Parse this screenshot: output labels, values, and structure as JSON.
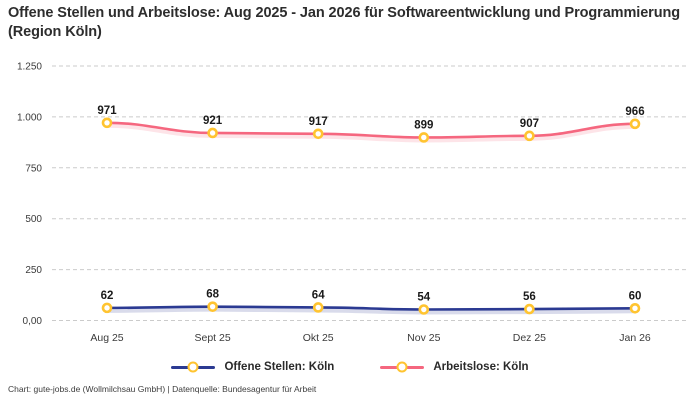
{
  "header": {
    "title": "Offene Stellen und Arbeitslose: Aug 2025 - Jan 2026 für Softwareentwicklung und Programmierung (Region Köln)"
  },
  "chart_data": {
    "type": "line",
    "title": "Offene Stellen und Arbeitslose: Aug 2025 - Jan 2026 für Softwareentwicklung und Programmierung (Region Köln)",
    "categories": [
      "Aug 25",
      "Sept 25",
      "Okt 25",
      "Nov 25",
      "Dez 25",
      "Jan 26"
    ],
    "series": [
      {
        "name": "Offene Stellen: Köln",
        "values": [
          62,
          68,
          64,
          54,
          56,
          60
        ],
        "color": "#2b3a92"
      },
      {
        "name": "Arbeitslose: Köln",
        "values": [
          971,
          921,
          917,
          899,
          907,
          966
        ],
        "color": "#f5677f"
      }
    ],
    "marker_color": "#ffc430",
    "marker_fill": "#ffffff",
    "data_labels": true,
    "y_ticks": [
      0,
      250,
      500,
      750,
      1000,
      1250
    ],
    "y_tick_labels": [
      "0,00",
      "250",
      "500",
      "750",
      "1.000",
      "1.250"
    ],
    "ylim": [
      0,
      1250
    ],
    "grid": "dashed-horizontal",
    "grid_color": "#cbcbcb",
    "tick_label_color": "#3b3b3b",
    "data_label_color": "#1a1a1a",
    "legend_position": "bottom"
  },
  "footer": {
    "text": "Chart: gute-jobs.de (Wollmilchsau GmbH) | Datenquelle: Bundesagentur für Arbeit"
  }
}
